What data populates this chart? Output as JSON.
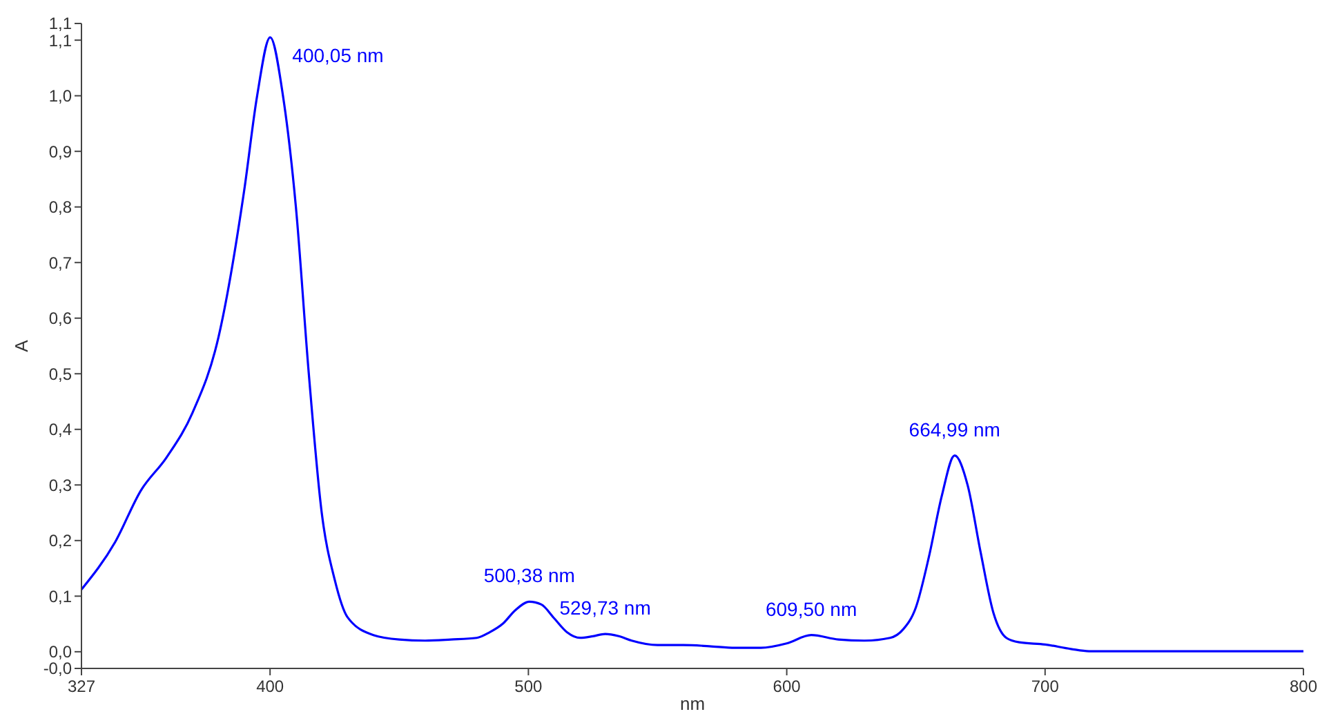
{
  "chart_data": {
    "type": "line",
    "xlabel": "nm",
    "ylabel": "A",
    "xlim": [
      327,
      800
    ],
    "xticks": [
      327,
      400,
      500,
      600,
      700,
      800
    ],
    "ylim": [
      -0.03,
      1.13
    ],
    "yticks": [
      {
        "value": -0.03,
        "label": "-0,0"
      },
      {
        "value": 0,
        "label": "0,0"
      },
      {
        "value": 0.1,
        "label": "0,1"
      },
      {
        "value": 0.2,
        "label": "0,2"
      },
      {
        "value": 0.3,
        "label": "0,3"
      },
      {
        "value": 0.4,
        "label": "0,4"
      },
      {
        "value": 0.5,
        "label": "0,5"
      },
      {
        "value": 0.6,
        "label": "0,6"
      },
      {
        "value": 0.7,
        "label": "0,7"
      },
      {
        "value": 0.8,
        "label": "0,8"
      },
      {
        "value": 0.9,
        "label": "0,9"
      },
      {
        "value": 1.0,
        "label": "1,0"
      },
      {
        "value": 1.1,
        "label": "1,1"
      },
      {
        "value": 1.13,
        "label": "1,1"
      }
    ],
    "grid": false,
    "marker": "none",
    "line_style": "solid",
    "series": [
      {
        "color": "#0000ff",
        "x": [
          327,
          340,
          350,
          360,
          370,
          380,
          390,
          395,
          400.05,
          405,
          410,
          415,
          420,
          425,
          430,
          440,
          450,
          460,
          470,
          480,
          485,
          490,
          495,
          500.38,
          505,
          510,
          515,
          520,
          525,
          529.73,
          535,
          540,
          550,
          560,
          570,
          580,
          590,
          600,
          609.5,
          620,
          630,
          640,
          645,
          650,
          655,
          660,
          664.99,
          670,
          675,
          680,
          685,
          690,
          700,
          710,
          717,
          800
        ],
        "values": [
          0.112,
          0.197,
          0.29,
          0.35,
          0.43,
          0.565,
          0.83,
          1.0,
          1.105,
          1.0,
          0.8,
          0.5,
          0.25,
          0.13,
          0.062,
          0.03,
          0.022,
          0.02,
          0.022,
          0.025,
          0.035,
          0.05,
          0.075,
          0.09,
          0.085,
          0.06,
          0.035,
          0.025,
          0.028,
          0.032,
          0.028,
          0.02,
          0.012,
          0.012,
          0.01,
          0.007,
          0.007,
          0.015,
          0.03,
          0.022,
          0.02,
          0.025,
          0.04,
          0.08,
          0.17,
          0.28,
          0.353,
          0.3,
          0.18,
          0.07,
          0.025,
          0.017,
          0.013,
          0.005,
          0.001,
          0.001
        ]
      }
    ],
    "annotations": [
      {
        "text": "400,05 nm",
        "x": 400.05,
        "y": 1.105
      },
      {
        "text": "500,38 nm",
        "x": 500.38,
        "y": 0.09
      },
      {
        "text": "529,73 nm",
        "x": 529.73,
        "y": 0.032
      },
      {
        "text": "609,50 nm",
        "x": 609.5,
        "y": 0.03
      },
      {
        "text": "664,99 nm",
        "x": 664.99,
        "y": 0.353
      }
    ]
  }
}
